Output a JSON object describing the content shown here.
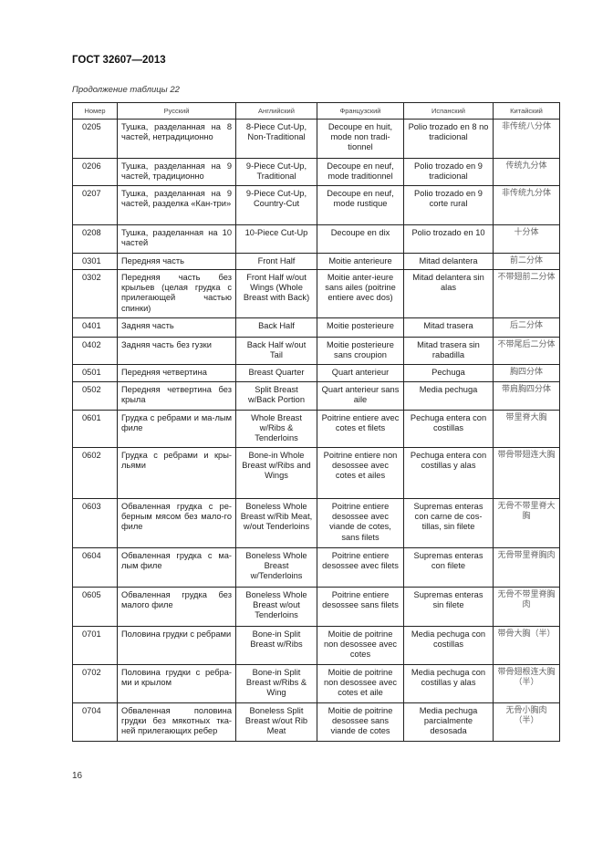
{
  "header": {
    "title": "ГОСТ 32607—2013"
  },
  "caption": "Продолжение таблицы 22",
  "columns": [
    "Номер",
    "Русский",
    "Английский",
    "Французский",
    "Испанский",
    "Китайский"
  ],
  "rows": [
    [
      "0205",
      "Тушка, разделанная на 8 частей, нетрадиционно",
      "8-Piece Cut-Up, Non-Traditional",
      "Decoupe en huit, mode non tradi-tionnel",
      "Polio trozado en 8 no tradicional",
      "非传统八分体"
    ],
    [
      "0206",
      "Тушка, разделанная на 9 частей, традиционно",
      "9-Piece Cut-Up, Traditional",
      "Decoupe en neuf, mode traditionnel",
      "Polio trozado en 9 tradicional",
      "传统九分体"
    ],
    [
      "0207",
      "Тушка, разделанная на 9 частей, разделка «Кан-три»",
      "9-Piece Cut-Up, Country-Cut",
      "Decoupe en neuf, mode rustique",
      "Polio trozado en 9 corte rural",
      "非传统九分体"
    ],
    [
      "0208",
      "Тушка, разделанная на 10 частей",
      "10-Piece Cut-Up",
      "Decoupe en dix",
      "Polio trozado en 10",
      "十分体"
    ],
    [
      "0301",
      "Передняя часть",
      "Front Half",
      "Moitie anterieure",
      "Mitad delantera",
      "前二分体"
    ],
    [
      "0302",
      "Передняя часть без крыльев (целая грудка с прилегающей частью спинки)",
      "Front Half w/out Wings (Whole Breast with Back)",
      "Moitie anter-ieure sans ailes (poitrine entiere avec dos)",
      "Mitad delantera sin alas",
      "不带翅前二分体"
    ],
    [
      "0401",
      "Задняя часть",
      "Back Half",
      "Moitie posterieure",
      "Mitad trasera",
      "后二分体"
    ],
    [
      "0402",
      "Задняя часть без гузки",
      "Back Half w/out Tail",
      "Moitie posterieure sans croupion",
      "Mitad trasera sin rabadilla",
      "不带尾后二分体"
    ],
    [
      "0501",
      "Передняя четвертина",
      "Breast Quarter",
      "Quart anterieur",
      "Pechuga",
      "胸四分体"
    ],
    [
      "0502",
      "Передняя четвертина без крыла",
      "Split Breast w/Back Portion",
      "Quart anterieur sans aile",
      "Media pechuga",
      "带肩胸四分体"
    ],
    [
      "0601",
      "Грудка с ребрами и ма-лым филе",
      "Whole Breast w/Ribs & Tenderloins",
      "Poitrine entiere avec cotes et filets",
      "Pechuga entera con costillas",
      "带里脊大胸"
    ],
    [
      "0602",
      "Грудка с ребрами и кры-льями",
      "Bone-in Whole Breast w/Ribs and Wings",
      "Poitrine entiere non desossee avec cotes et ailes",
      "Pechuga entera con costillas y alas",
      "带骨带翅连大胸"
    ],
    [
      "0603",
      "Обваленная грудка с ре-берным мясом без мало-го филе",
      "Boneless Whole Breast w/Rib Meat, w/out Tenderloins",
      "Poitrine entiere desossee avec viande de cotes, sans filets",
      "Supremas enteras con carne de cos-tillas, sin filete",
      "无骨不带里脊大胸"
    ],
    [
      "0604",
      "Обваленная грудка с ма-лым филе",
      "Boneless Whole Breast w/Tenderloins",
      "Poitrine entiere desossee avec filets",
      "Supremas enteras con filete",
      "无骨带里脊胸肉"
    ],
    [
      "0605",
      "Обваленная грудка без малого филе",
      "Boneless Whole Breast w/out Tenderloins",
      "Poitrine entiere desossee sans filets",
      "Supremas enteras sin filete",
      "无骨不带里脊胸肉"
    ],
    [
      "0701",
      "Половина грудки с ребрами",
      "Bone-in Split Breast w/Ribs",
      "Moitie de poitrine non desossee avec cotes",
      "Media pechuga con costillas",
      "带骨大胸（半）"
    ],
    [
      "0702",
      "Половина грудки с ребра-ми и крылом",
      "Bone-in Split Breast w/Ribs & Wing",
      "Moitie de poitrine non desossee avec cotes et aile",
      "Media pechuga con costillas y alas",
      "带骨翅根连大胸（半）"
    ],
    [
      "0704",
      "Обваленная половина грудки без мякотных тка-ней прилегающих ребер",
      "Boneless Split Breast w/out Rib Meat",
      "Moitie de poitrine desossee sans viande de cotes",
      "Media pechuga parcialmente desosada",
      "无骨小胸肉（半）"
    ]
  ],
  "page_number": "16"
}
